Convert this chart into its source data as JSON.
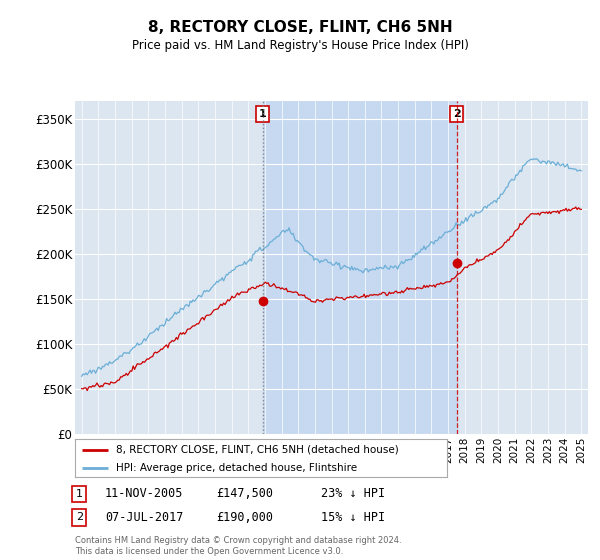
{
  "title": "8, RECTORY CLOSE, FLINT, CH6 5NH",
  "subtitle": "Price paid vs. HM Land Registry's House Price Index (HPI)",
  "ylim": [
    0,
    370000
  ],
  "yticks": [
    0,
    50000,
    100000,
    150000,
    200000,
    250000,
    300000,
    350000
  ],
  "ytick_labels": [
    "£0",
    "£50K",
    "£100K",
    "£150K",
    "£200K",
    "£250K",
    "£300K",
    "£350K"
  ],
  "hpi_color": "#6baed6",
  "price_color": "#cc0000",
  "background_color": "#dce6f1",
  "shade_color": "#c6d9f0",
  "sale1_x": 2005.87,
  "sale1_y": 147500,
  "sale2_x": 2017.52,
  "sale2_y": 190000,
  "xmin": 1995,
  "xmax": 2025,
  "footer": "Contains HM Land Registry data © Crown copyright and database right 2024.\nThis data is licensed under the Open Government Licence v3.0.",
  "table_row1": [
    "1",
    "11-NOV-2005",
    "£147,500",
    "23% ↓ HPI"
  ],
  "table_row2": [
    "2",
    "07-JUL-2017",
    "£190,000",
    "15% ↓ HPI"
  ],
  "legend_label_price": "8, RECTORY CLOSE, FLINT, CH6 5NH (detached house)",
  "legend_label_hpi": "HPI: Average price, detached house, Flintshire"
}
